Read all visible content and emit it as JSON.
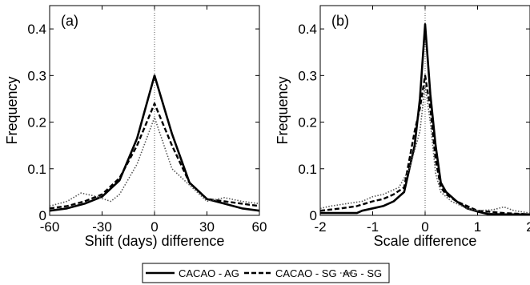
{
  "chart_data": [
    {
      "type": "line",
      "panel_label": "(a)",
      "xlabel": "Shift (days) difference",
      "ylabel": "Frequency",
      "xlim": [
        -60,
        60
      ],
      "ylim": [
        0,
        0.45
      ],
      "xticks": [
        -60,
        -30,
        0,
        30,
        60
      ],
      "yticks": [
        0,
        0.1,
        0.2,
        0.3,
        0.4
      ],
      "ytick_labels": [
        "0",
        "0.1",
        "0.2",
        "0.3",
        "0.4"
      ],
      "reference_line_x": 0,
      "series": [
        {
          "name": "CACAO - AG",
          "style": "solid",
          "points": [
            [
              -60,
              0.01
            ],
            [
              -50,
              0.015
            ],
            [
              -40,
              0.025
            ],
            [
              -30,
              0.04
            ],
            [
              -20,
              0.075
            ],
            [
              -10,
              0.165
            ],
            [
              0,
              0.3
            ],
            [
              10,
              0.175
            ],
            [
              20,
              0.07
            ],
            [
              30,
              0.035
            ],
            [
              40,
              0.025
            ],
            [
              50,
              0.015
            ],
            [
              60,
              0.01
            ]
          ]
        },
        {
          "name": "CACAO - SG",
          "style": "dashed",
          "points": [
            [
              -60,
              0.015
            ],
            [
              -50,
              0.02
            ],
            [
              -40,
              0.03
            ],
            [
              -30,
              0.045
            ],
            [
              -20,
              0.08
            ],
            [
              -10,
              0.15
            ],
            [
              0,
              0.24
            ],
            [
              10,
              0.15
            ],
            [
              20,
              0.07
            ],
            [
              30,
              0.035
            ],
            [
              40,
              0.03
            ],
            [
              50,
              0.025
            ],
            [
              60,
              0.02
            ]
          ]
        },
        {
          "name": "AG - SG",
          "style": "dotted",
          "points": [
            [
              -60,
              0.02
            ],
            [
              -50,
              0.03
            ],
            [
              -42,
              0.048
            ],
            [
              -35,
              0.042
            ],
            [
              -25,
              0.03
            ],
            [
              -20,
              0.045
            ],
            [
              -10,
              0.11
            ],
            [
              0,
              0.21
            ],
            [
              10,
              0.1
            ],
            [
              20,
              0.065
            ],
            [
              30,
              0.03
            ],
            [
              40,
              0.038
            ],
            [
              50,
              0.03
            ],
            [
              60,
              0.025
            ]
          ]
        }
      ]
    },
    {
      "type": "line",
      "panel_label": "(b)",
      "xlabel": "Scale difference",
      "ylabel": "Frequency",
      "xlim": [
        -2,
        2
      ],
      "ylim": [
        0,
        0.45
      ],
      "xticks": [
        -2,
        -1,
        0,
        1,
        2
      ],
      "yticks": [
        0,
        0.1,
        0.2,
        0.3,
        0.4
      ],
      "ytick_labels": [
        "0",
        "0.1",
        "0.2",
        "0.3",
        "0.4"
      ],
      "reference_line_x": 0,
      "series": [
        {
          "name": "CACAO - AG",
          "style": "solid",
          "points": [
            [
              -2,
              0.005
            ],
            [
              -1.7,
              0.005
            ],
            [
              -1.3,
              0.005
            ],
            [
              -1.2,
              0.01
            ],
            [
              -1,
              0.015
            ],
            [
              -0.8,
              0.02
            ],
            [
              -0.6,
              0.03
            ],
            [
              -0.4,
              0.05
            ],
            [
              -0.2,
              0.15
            ],
            [
              -0.1,
              0.25
            ],
            [
              0,
              0.41
            ],
            [
              0.1,
              0.26
            ],
            [
              0.2,
              0.15
            ],
            [
              0.3,
              0.07
            ],
            [
              0.4,
              0.05
            ],
            [
              0.6,
              0.03
            ],
            [
              0.8,
              0.015
            ],
            [
              1,
              0.008
            ],
            [
              1.2,
              0.003
            ],
            [
              1.5,
              0.002
            ],
            [
              2,
              0.002
            ]
          ]
        },
        {
          "name": "CACAO - SG",
          "style": "dashed",
          "points": [
            [
              -2,
              0.01
            ],
            [
              -1.6,
              0.015
            ],
            [
              -1.3,
              0.02
            ],
            [
              -1,
              0.03
            ],
            [
              -0.8,
              0.035
            ],
            [
              -0.6,
              0.045
            ],
            [
              -0.4,
              0.06
            ],
            [
              -0.2,
              0.18
            ],
            [
              -0.1,
              0.23
            ],
            [
              0,
              0.3
            ],
            [
              0.1,
              0.23
            ],
            [
              0.2,
              0.12
            ],
            [
              0.3,
              0.06
            ],
            [
              0.4,
              0.045
            ],
            [
              0.6,
              0.03
            ],
            [
              0.8,
              0.02
            ],
            [
              1,
              0.01
            ],
            [
              1.5,
              0.005
            ],
            [
              2,
              0.002
            ]
          ]
        },
        {
          "name": "AG - SG",
          "style": "dotted",
          "points": [
            [
              -2,
              0.015
            ],
            [
              -1.8,
              0.02
            ],
            [
              -1.5,
              0.025
            ],
            [
              -1.2,
              0.03
            ],
            [
              -1,
              0.04
            ],
            [
              -0.8,
              0.045
            ],
            [
              -0.5,
              0.06
            ],
            [
              -0.3,
              0.1
            ],
            [
              -0.1,
              0.18
            ],
            [
              0,
              0.28
            ],
            [
              0.1,
              0.2
            ],
            [
              0.2,
              0.09
            ],
            [
              0.3,
              0.05
            ],
            [
              0.5,
              0.03
            ],
            [
              0.8,
              0.015
            ],
            [
              1,
              0.01
            ],
            [
              1.3,
              0.012
            ],
            [
              1.5,
              0.018
            ],
            [
              1.7,
              0.01
            ],
            [
              2,
              0.005
            ]
          ]
        }
      ]
    }
  ],
  "legend": {
    "placement": "bottom-center",
    "items": [
      {
        "label": "CACAO - AG",
        "style": "solid"
      },
      {
        "label": "CACAO - SG",
        "style": "dashed"
      },
      {
        "label": "AG - SG",
        "style": "dotted"
      }
    ]
  }
}
